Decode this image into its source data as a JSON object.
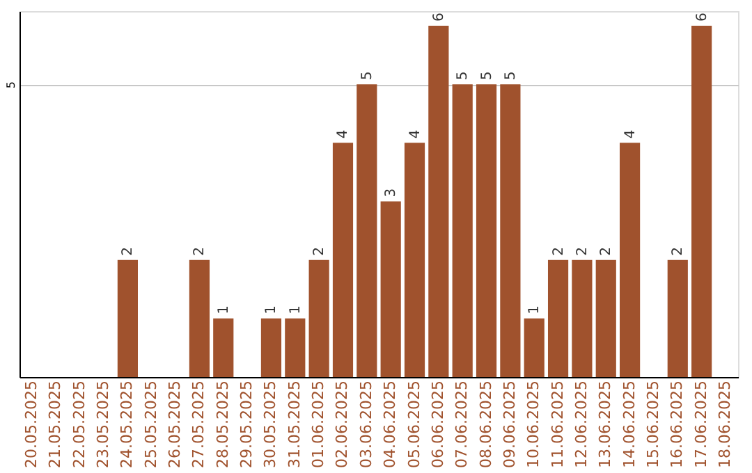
{
  "chart_data": {
    "type": "bar",
    "categories": [
      "20.05.2025",
      "21.05.2025",
      "22.05.2025",
      "23.05.2025",
      "24.05.2025",
      "25.05.2025",
      "26.05.2025",
      "27.05.2025",
      "28.05.2025",
      "29.05.2025",
      "30.05.2025",
      "31.05.2025",
      "01.06.2025",
      "02.06.2025",
      "03.06.2025",
      "04.06.2025",
      "05.06.2025",
      "06.06.2025",
      "07.06.2025",
      "08.06.2025",
      "09.06.2025",
      "10.06.2025",
      "11.06.2025",
      "12.06.2025",
      "13.06.2025",
      "14.06.2025",
      "15.06.2025",
      "16.06.2025",
      "17.06.2025",
      "18.06.2025"
    ],
    "values": [
      null,
      null,
      null,
      null,
      2,
      null,
      null,
      2,
      1,
      null,
      1,
      1,
      2,
      4,
      5,
      3,
      4,
      6,
      5,
      5,
      5,
      1,
      2,
      2,
      2,
      4,
      null,
      2,
      6,
      null
    ],
    "color": "#a0522d",
    "ylim": [
      0,
      6.25
    ],
    "yticks": [
      5
    ],
    "grid": "y",
    "data_labels": true
  }
}
